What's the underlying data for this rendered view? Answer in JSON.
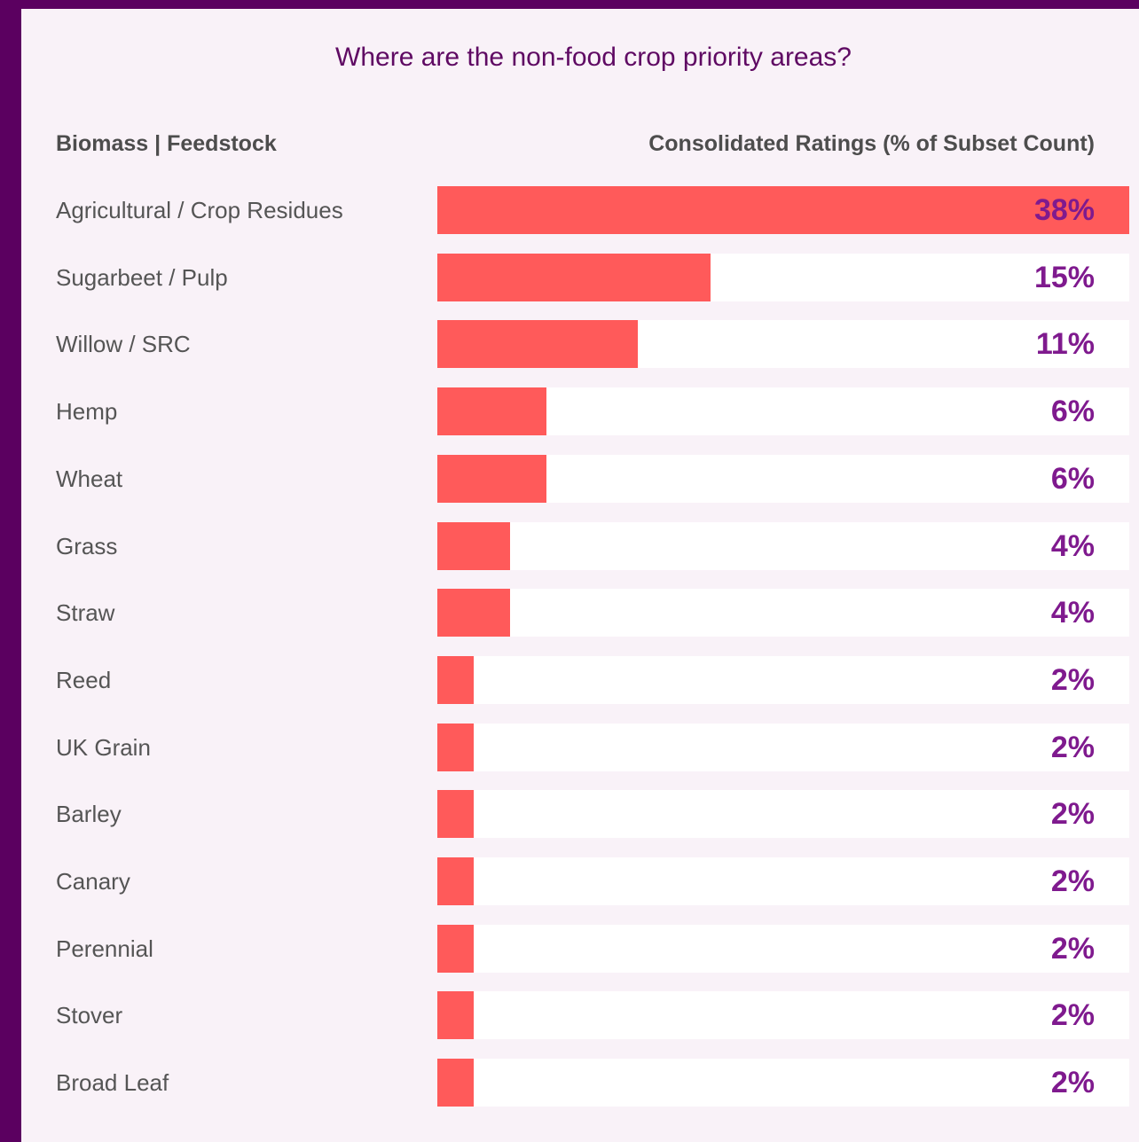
{
  "chart_data": {
    "type": "bar",
    "orientation": "horizontal",
    "title": "Where are the non-food crop priority areas?",
    "category_header": "Biomass | Feedstock",
    "value_header": "Consolidated Ratings (% of Subset Count)",
    "categories": [
      "Agricultural / Crop Residues",
      "Sugarbeet / Pulp",
      "Willow / SRC",
      "Hemp",
      "Wheat",
      "Grass",
      "Straw",
      "Reed",
      "UK Grain",
      "Barley",
      "Canary",
      "Perennial",
      "Stover",
      "Broad Leaf"
    ],
    "values": [
      38,
      15,
      11,
      6,
      6,
      4,
      4,
      2,
      2,
      2,
      2,
      2,
      2,
      2
    ],
    "value_labels": [
      "38%",
      "15%",
      "11%",
      "6%",
      "6%",
      "4%",
      "4%",
      "2%",
      "2%",
      "2%",
      "2%",
      "2%",
      "2%",
      "2%"
    ],
    "xlim": [
      0,
      38
    ],
    "grid": false
  },
  "colors": {
    "frame": "#5b0060",
    "background": "#f9f2f8",
    "bar": "#ff5a5a",
    "track": "#ffffff",
    "value_text": "#7f1a8e",
    "title_text": "#5f0a63",
    "label_text": "#555555"
  }
}
